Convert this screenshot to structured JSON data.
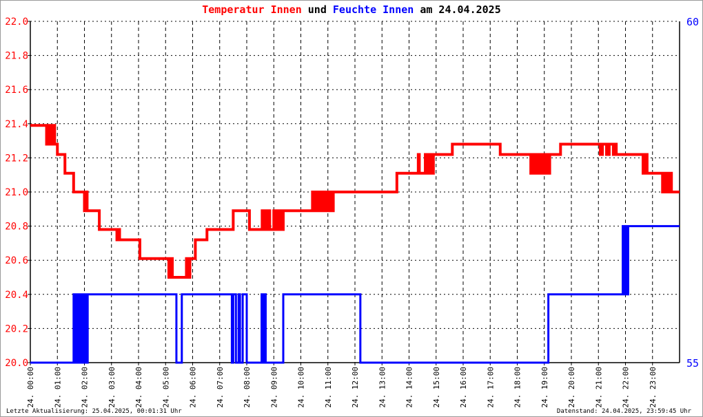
{
  "title": {
    "part1": "Temperatur Innen",
    "part2": " und ",
    "part3": "Feuchte Innen",
    "part4": " am 24.04.2025"
  },
  "footer": {
    "left": "Letzte Aktualisierung: 25.04.2025, 00:01:31 Uhr",
    "right": "Datenstand: 24.04.2025, 23:59:45 Uhr"
  },
  "chart_data": {
    "type": "line",
    "step": true,
    "grid": true,
    "xlim": [
      0,
      24
    ],
    "x_ticks": [
      "24. 00:00",
      "24. 01:00",
      "24. 02:00",
      "24. 03:00",
      "24. 04:00",
      "24. 05:00",
      "24. 06:00",
      "24. 07:00",
      "24. 08:00",
      "24. 09:00",
      "24. 10:00",
      "24. 11:00",
      "24. 12:00",
      "24. 13:00",
      "24. 14:00",
      "24. 15:00",
      "24. 16:00",
      "24. 17:00",
      "24. 18:00",
      "24. 19:00",
      "24. 20:00",
      "24. 21:00",
      "24. 22:00",
      "24. 23:00"
    ],
    "y_left": {
      "range": [
        20.0,
        22.0
      ],
      "ticks": [
        "20.0",
        "20.2",
        "20.4",
        "20.6",
        "20.8",
        "21.0",
        "21.2",
        "21.4",
        "21.6",
        "21.8",
        "22.0"
      ],
      "color": "#ff0000"
    },
    "y_right": {
      "range": [
        55,
        60
      ],
      "ticks": [
        "55",
        "60"
      ],
      "color": "#0000ff"
    },
    "series": [
      {
        "name": "Temperatur Innen",
        "axis": "left",
        "color": "#ff0000",
        "points": [
          [
            0,
            21.39
          ],
          [
            0.6,
            21.28
          ],
          [
            0.65,
            21.39
          ],
          [
            0.7,
            21.28
          ],
          [
            0.75,
            21.39
          ],
          [
            0.8,
            21.28
          ],
          [
            0.85,
            21.39
          ],
          [
            0.9,
            21.28
          ],
          [
            1.0,
            21.22
          ],
          [
            1.28,
            21.11
          ],
          [
            1.6,
            21.0
          ],
          [
            2.0,
            20.89
          ],
          [
            2.05,
            21.0
          ],
          [
            2.1,
            20.89
          ],
          [
            2.55,
            20.78
          ],
          [
            3.2,
            20.72
          ],
          [
            3.25,
            20.78
          ],
          [
            3.3,
            20.72
          ],
          [
            4.05,
            20.61
          ],
          [
            5.12,
            20.5
          ],
          [
            5.2,
            20.61
          ],
          [
            5.25,
            20.5
          ],
          [
            5.77,
            20.61
          ],
          [
            5.85,
            20.5
          ],
          [
            5.9,
            20.61
          ],
          [
            6.1,
            20.72
          ],
          [
            6.53,
            20.78
          ],
          [
            7.5,
            20.89
          ],
          [
            8.1,
            20.78
          ],
          [
            8.57,
            20.89
          ],
          [
            8.65,
            20.78
          ],
          [
            8.75,
            20.89
          ],
          [
            8.85,
            20.78
          ],
          [
            9.0,
            20.89
          ],
          [
            9.1,
            20.78
          ],
          [
            9.2,
            20.89
          ],
          [
            9.3,
            20.78
          ],
          [
            9.35,
            20.89
          ],
          [
            10.43,
            21.0
          ],
          [
            10.5,
            20.89
          ],
          [
            10.6,
            21.0
          ],
          [
            10.7,
            20.89
          ],
          [
            10.8,
            21.0
          ],
          [
            10.9,
            20.89
          ],
          [
            11.0,
            21.0
          ],
          [
            11.1,
            20.89
          ],
          [
            11.2,
            21.0
          ],
          [
            13.55,
            21.11
          ],
          [
            14.34,
            21.22
          ],
          [
            14.38,
            21.11
          ],
          [
            14.6,
            21.22
          ],
          [
            14.65,
            21.11
          ],
          [
            14.7,
            21.22
          ],
          [
            14.75,
            21.11
          ],
          [
            14.8,
            21.22
          ],
          [
            14.85,
            21.11
          ],
          [
            14.9,
            21.22
          ],
          [
            15.6,
            21.28
          ],
          [
            17.37,
            21.22
          ],
          [
            18.5,
            21.11
          ],
          [
            18.6,
            21.22
          ],
          [
            18.7,
            21.11
          ],
          [
            18.8,
            21.22
          ],
          [
            18.9,
            21.11
          ],
          [
            19.0,
            21.22
          ],
          [
            19.1,
            21.11
          ],
          [
            19.2,
            21.22
          ],
          [
            19.6,
            21.28
          ],
          [
            21.07,
            21.22
          ],
          [
            21.15,
            21.28
          ],
          [
            21.3,
            21.22
          ],
          [
            21.4,
            21.28
          ],
          [
            21.55,
            21.22
          ],
          [
            21.6,
            21.28
          ],
          [
            21.66,
            21.22
          ],
          [
            22.65,
            21.11
          ],
          [
            22.7,
            21.22
          ],
          [
            22.8,
            21.11
          ],
          [
            23.37,
            21.0
          ],
          [
            23.45,
            21.11
          ],
          [
            23.55,
            21.0
          ],
          [
            23.6,
            21.11
          ],
          [
            23.7,
            21.0
          ],
          [
            24,
            21.0
          ]
        ]
      },
      {
        "name": "Feuchte Innen",
        "axis": "right",
        "color": "#0000ff",
        "points": [
          [
            0,
            55
          ],
          [
            1.6,
            56
          ],
          [
            1.65,
            55
          ],
          [
            1.7,
            56
          ],
          [
            1.75,
            55
          ],
          [
            1.8,
            56
          ],
          [
            1.85,
            55
          ],
          [
            1.9,
            56
          ],
          [
            1.95,
            55
          ],
          [
            2.0,
            56
          ],
          [
            2.05,
            55
          ],
          [
            2.12,
            56
          ],
          [
            5.4,
            55
          ],
          [
            5.6,
            56
          ],
          [
            7.45,
            55
          ],
          [
            7.5,
            56
          ],
          [
            7.6,
            55
          ],
          [
            7.7,
            56
          ],
          [
            7.75,
            55
          ],
          [
            7.85,
            56
          ],
          [
            8.0,
            55
          ],
          [
            8.55,
            56
          ],
          [
            8.6,
            55
          ],
          [
            8.65,
            56
          ],
          [
            8.7,
            55
          ],
          [
            9.35,
            56
          ],
          [
            12.2,
            55
          ],
          [
            19.15,
            56
          ],
          [
            21.9,
            57
          ],
          [
            21.95,
            56
          ],
          [
            22.0,
            57
          ],
          [
            22.05,
            56
          ],
          [
            22.1,
            57
          ],
          [
            24,
            57
          ]
        ]
      }
    ]
  }
}
